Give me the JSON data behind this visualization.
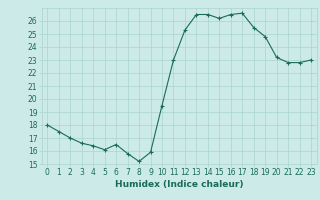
{
  "x": [
    0,
    1,
    2,
    3,
    4,
    5,
    6,
    7,
    8,
    9,
    10,
    11,
    12,
    13,
    14,
    15,
    16,
    17,
    18,
    19,
    20,
    21,
    22,
    23
  ],
  "y": [
    18,
    17.5,
    17,
    16.6,
    16.4,
    16.1,
    16.5,
    15.8,
    15.2,
    15.9,
    19.5,
    23,
    25.3,
    26.5,
    26.5,
    26.2,
    26.5,
    26.6,
    25.5,
    24.8,
    23.2,
    22.8,
    22.8,
    23
  ],
  "line_color": "#1a6b5a",
  "marker": "+",
  "marker_color": "#1a6b5a",
  "bg_color": "#cceae8",
  "grid_color": "#aad4d1",
  "xlabel": "Humidex (Indice chaleur)",
  "ylim": [
    15,
    27
  ],
  "xlim": [
    -0.5,
    23.5
  ],
  "yticks": [
    15,
    16,
    17,
    18,
    19,
    20,
    21,
    22,
    23,
    24,
    25,
    26
  ],
  "xticks": [
    0,
    1,
    2,
    3,
    4,
    5,
    6,
    7,
    8,
    9,
    10,
    11,
    12,
    13,
    14,
    15,
    16,
    17,
    18,
    19,
    20,
    21,
    22,
    23
  ],
  "tick_fontsize": 5.5,
  "xlabel_fontsize": 6.5,
  "linewidth": 0.8,
  "markersize": 3,
  "markeredgewidth": 0.8
}
